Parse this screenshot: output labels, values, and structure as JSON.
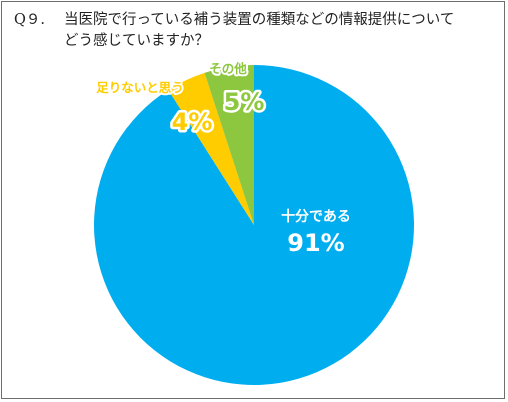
{
  "title": {
    "number": "Q９.",
    "line1": "当医院で行っている補う装置の種類などの情報提供について",
    "line2": "どう感じていますか？"
  },
  "chart_data": {
    "type": "pie",
    "categories": [
      "十分である",
      "足りないと思う",
      "その他"
    ],
    "values": [
      91,
      4,
      5
    ],
    "value_labels": [
      "91%",
      "4%",
      "5%"
    ],
    "colors": [
      "#00aeef",
      "#ffcc00",
      "#8dc63f"
    ],
    "label_colors": {
      "十分である": "#ffffff",
      "足りないと思う": "#ffcc00",
      "その他": "#8dc63f"
    }
  }
}
